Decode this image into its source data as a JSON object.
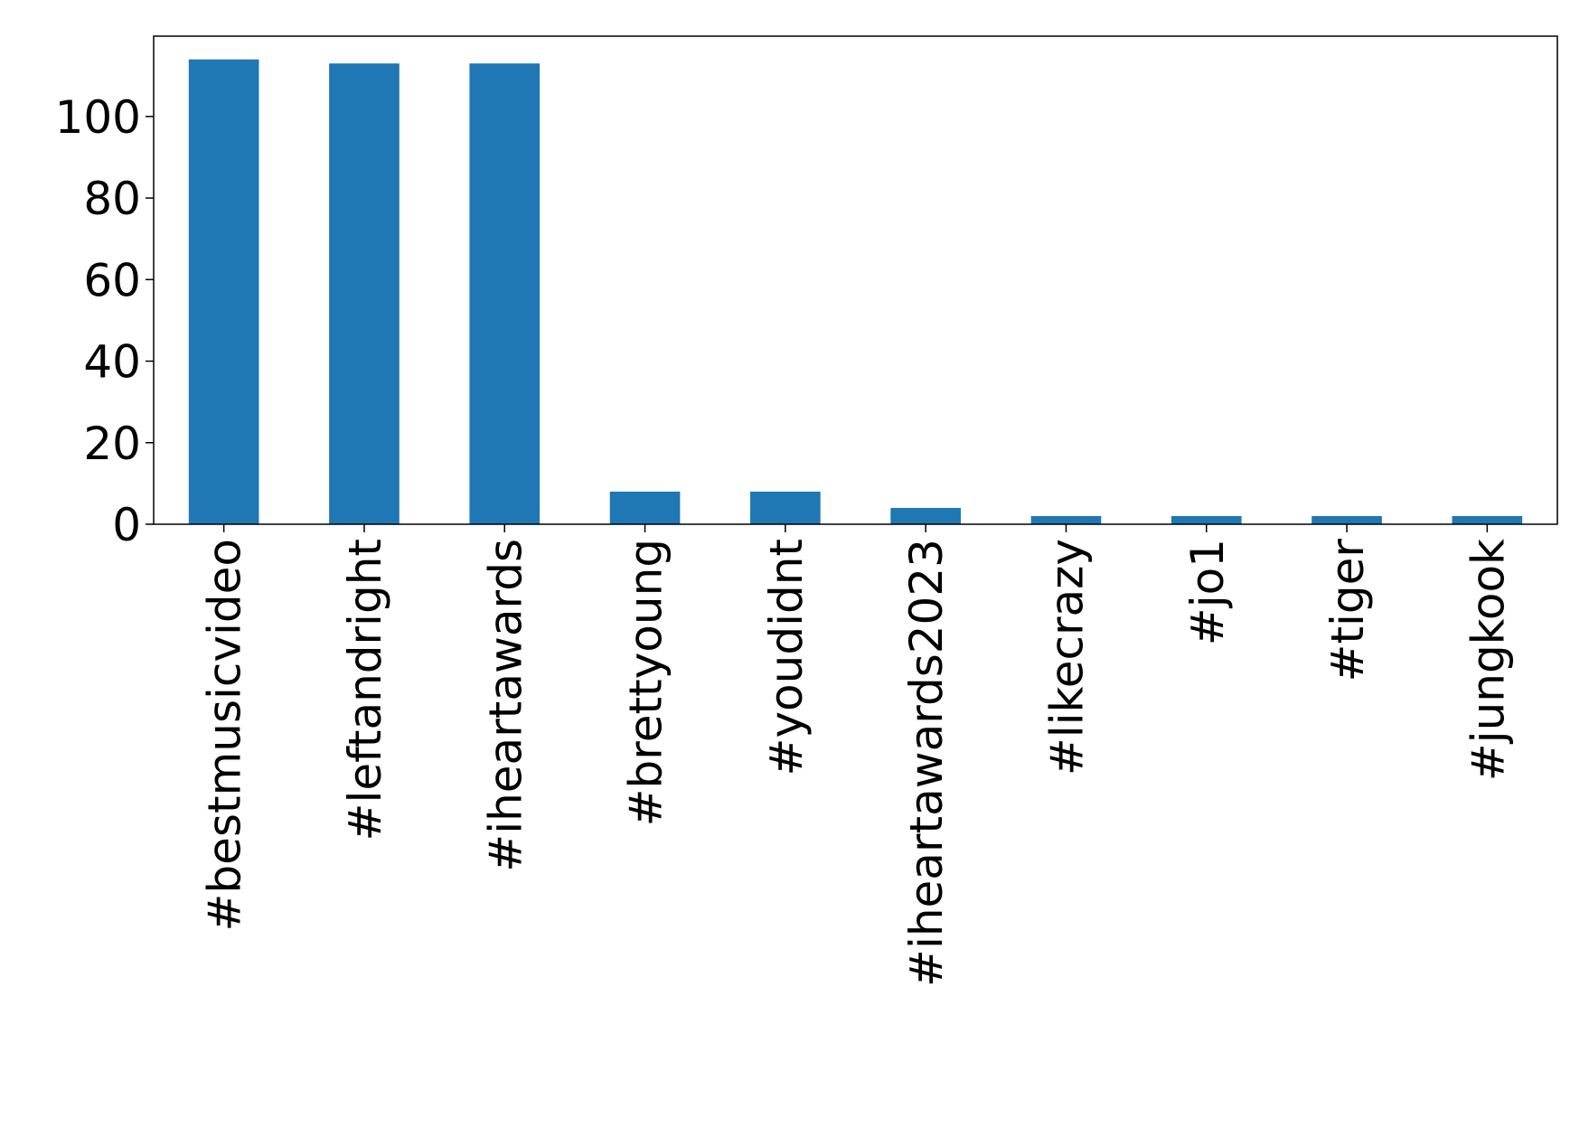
{
  "chart_data": {
    "type": "bar",
    "categories": [
      "#bestmusicvideo",
      "#leftandright",
      "#iheartawards",
      "#brettyoung",
      "#youdidnt",
      "#iheartawards2023",
      "#likecrazy",
      "#jo1",
      "#tiger",
      "#jungkook"
    ],
    "values": [
      114,
      113,
      113,
      8,
      8,
      4,
      2,
      2,
      2,
      2
    ],
    "color": "#1f77b4",
    "ylim": [
      0,
      119.7
    ],
    "yticks": [
      0,
      20,
      40,
      60,
      80,
      100
    ],
    "grid": false
  }
}
